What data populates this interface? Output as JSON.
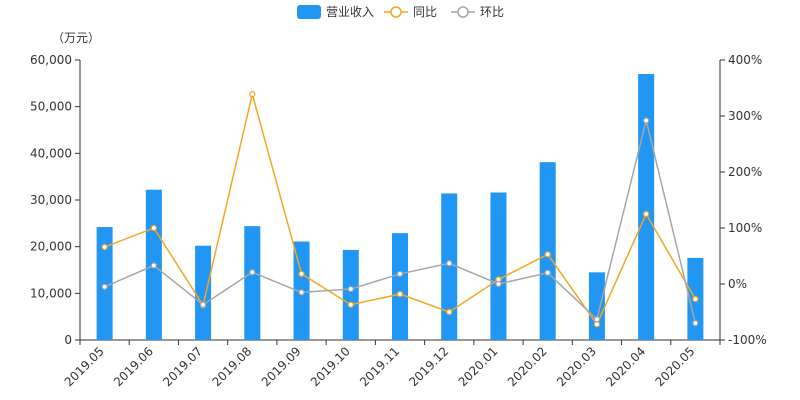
{
  "chart_data": {
    "type": "bar",
    "unit_label": "（万元）",
    "categories": [
      "2019.05",
      "2019.06",
      "2019.07",
      "2019.08",
      "2019.09",
      "2019.10",
      "2019.11",
      "2019.12",
      "2020.01",
      "2020.02",
      "2020.03",
      "2020.04",
      "2020.05"
    ],
    "y_left": {
      "min": 0,
      "max": 60000,
      "ticks": [
        0,
        10000,
        20000,
        30000,
        40000,
        50000,
        60000
      ],
      "tick_labels": [
        "0",
        "10,000",
        "20,000",
        "30,000",
        "40,000",
        "50,000",
        "60,000"
      ]
    },
    "y_right": {
      "min": -100,
      "max": 400,
      "ticks": [
        -100,
        0,
        100,
        200,
        300,
        400
      ],
      "tick_labels": [
        "-100%",
        "0%",
        "100%",
        "200%",
        "300%",
        "400%"
      ]
    },
    "series": [
      {
        "name": "营业收入",
        "kind": "bar",
        "axis": "left",
        "color": "#2196F3",
        "values": [
          24200,
          32200,
          20200,
          24400,
          21100,
          19300,
          22900,
          31400,
          31600,
          38100,
          14500,
          57000,
          17600
        ]
      },
      {
        "name": "同比",
        "kind": "line",
        "axis": "right",
        "color": "#F5A623",
        "values": [
          66,
          100,
          -38,
          339,
          18,
          -37,
          -18,
          -50,
          8,
          53,
          -72,
          125,
          -27
        ]
      },
      {
        "name": "环比",
        "kind": "line",
        "axis": "right",
        "color": "#A6A6A6",
        "values": [
          -5,
          33,
          -37,
          21,
          -15,
          -9,
          18,
          37,
          0,
          20,
          -63,
          292,
          -70
        ]
      }
    ],
    "legend_position": "top-center",
    "grid": false
  }
}
